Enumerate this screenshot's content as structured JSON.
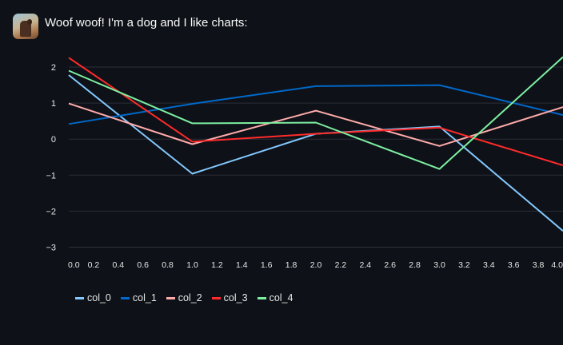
{
  "message": {
    "text": "Woof woof! I'm a dog and I like charts:",
    "avatar_icon": "dog-avatar-icon"
  },
  "chart_data": {
    "type": "line",
    "x": [
      0,
      1,
      2,
      3,
      4
    ],
    "xlim": [
      0,
      4
    ],
    "ylim": [
      -3.1,
      2.4
    ],
    "x_ticks": [
      "0.0",
      "0.2",
      "0.4",
      "0.6",
      "0.8",
      "1.0",
      "1.2",
      "1.4",
      "1.6",
      "1.8",
      "2.0",
      "2.2",
      "2.4",
      "2.6",
      "2.8",
      "3.0",
      "3.2",
      "3.4",
      "3.6",
      "3.8",
      "4.0"
    ],
    "y_ticks": [
      "2",
      "1",
      "0",
      "−1",
      "−2",
      "−3"
    ],
    "y_tick_values": [
      2,
      1,
      0,
      -1,
      -2,
      -3
    ],
    "grid": "horizontal",
    "legend_position": "bottom-left",
    "series": [
      {
        "name": "col_0",
        "color": "#83c9ff",
        "values": [
          1.78,
          -0.96,
          0.15,
          0.35,
          -2.55
        ]
      },
      {
        "name": "col_1",
        "color": "#0068c9",
        "values": [
          0.42,
          0.98,
          1.47,
          1.5,
          0.67
        ]
      },
      {
        "name": "col_2",
        "color": "#ffabab",
        "values": [
          0.99,
          -0.14,
          0.79,
          -0.19,
          0.89
        ]
      },
      {
        "name": "col_3",
        "color": "#ff2b2b",
        "values": [
          2.26,
          -0.07,
          0.15,
          0.32,
          -0.73
        ]
      },
      {
        "name": "col_4",
        "color": "#7defa1",
        "values": [
          1.9,
          0.44,
          0.46,
          -0.83,
          2.28
        ]
      }
    ]
  }
}
